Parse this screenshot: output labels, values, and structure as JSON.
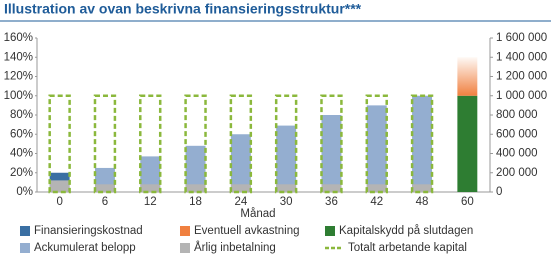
{
  "chart_data": {
    "type": "bar",
    "title": "Illustration av ovan beskrivna finansieringsstruktur***",
    "x_label": "Månad",
    "categories": [
      "0",
      "6",
      "12",
      "18",
      "24",
      "30",
      "36",
      "42",
      "48",
      "60"
    ],
    "ylim": [
      0,
      160
    ],
    "yticks": [
      {
        "value": 0,
        "label": "0%"
      },
      {
        "value": 20,
        "label": "20%"
      },
      {
        "value": 40,
        "label": "40%"
      },
      {
        "value": 60,
        "label": "60%"
      },
      {
        "value": 80,
        "label": "80%"
      },
      {
        "value": 100,
        "label": "100%"
      },
      {
        "value": 120,
        "label": "120%"
      },
      {
        "value": 140,
        "label": "140%"
      },
      {
        "value": 160,
        "label": "160%"
      }
    ],
    "y2lim": [
      0,
      1600000
    ],
    "y2ticks": [
      0,
      {
        "value": 200000,
        "label": "200 000"
      },
      {
        "value": 400000,
        "label": "400 000"
      },
      {
        "value": 600000,
        "label": "600 000"
      },
      {
        "value": 800000,
        "label": "800 000"
      },
      {
        "value": 1000000,
        "label": "1 000 000"
      },
      {
        "value": 1200000,
        "label": "1 200 000"
      },
      {
        "value": 1400000,
        "label": "1 400 000"
      },
      {
        "value": 1600000,
        "label": "1 600 000"
      }
    ],
    "series": [
      {
        "name": "Finansieringskostnad",
        "color": "#3a6fa3",
        "role": "stack",
        "values": [
          8,
          null,
          null,
          null,
          null,
          null,
          null,
          null,
          null,
          null
        ]
      },
      {
        "name": "Eventuell avkastning",
        "color": "#f08040",
        "role": "top",
        "values": [
          null,
          null,
          null,
          null,
          null,
          null,
          null,
          null,
          null,
          40
        ]
      },
      {
        "name": "Kapitalskydd på slutdagen",
        "color": "#2e7d32",
        "role": "base",
        "values": [
          null,
          null,
          null,
          null,
          null,
          null,
          null,
          null,
          null,
          100
        ]
      },
      {
        "name": "Ackumulerat belopp",
        "color": "#94aed0",
        "role": "base",
        "values": [
          12,
          25,
          37,
          48,
          60,
          69,
          80,
          90,
          100,
          null
        ]
      },
      {
        "name": "Årlig inbetalning",
        "color": "#b4b4b4",
        "role": "front",
        "values": [
          12,
          8,
          8,
          8,
          8,
          8,
          8,
          8,
          8,
          null
        ]
      },
      {
        "name": "Totalt arbetande kapital",
        "color": "#8bb83c",
        "role": "outline",
        "values": [
          100,
          100,
          100,
          100,
          100,
          100,
          100,
          100,
          100,
          null
        ]
      }
    ]
  }
}
